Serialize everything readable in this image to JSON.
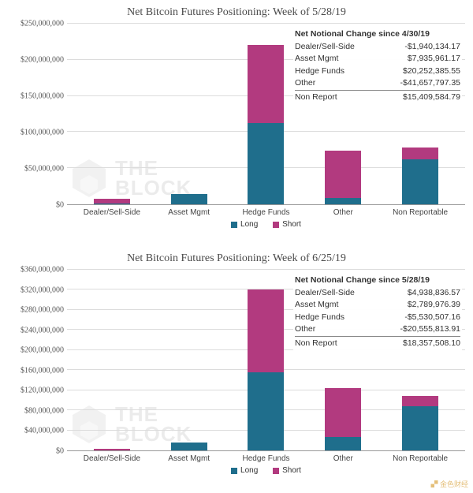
{
  "colors": {
    "long": "#1f6e8c",
    "short": "#b23a7f",
    "grid": "#dcdcdc",
    "axis": "#999999",
    "bg": "#ffffff"
  },
  "watermark": {
    "line1": "THE",
    "line2": "BLOCK"
  },
  "legend": {
    "long_label": "Long",
    "short_label": "Short"
  },
  "corner_mark": "▞ 金色财经",
  "charts": [
    {
      "title": "Net Bitcoin Futures Positioning: Week of 5/28/19",
      "y_max": 250000000,
      "y_ticks": [
        {
          "v": 0,
          "label": "$0"
        },
        {
          "v": 50000000,
          "label": "$50,000,000"
        },
        {
          "v": 100000000,
          "label": "$100,000,000"
        },
        {
          "v": 150000000,
          "label": "$150,000,000"
        },
        {
          "v": 200000000,
          "label": "$200,000,000"
        },
        {
          "v": 250000000,
          "label": "$250,000,000"
        }
      ],
      "categories": [
        "Dealer/Sell-Side",
        "Asset Mgmt",
        "Hedge Funds",
        "Other",
        "Non Reportable"
      ],
      "series": {
        "long": [
          1500000,
          14000000,
          112000000,
          9000000,
          62000000
        ],
        "short": [
          6000000,
          0,
          108000000,
          65000000,
          16000000
        ]
      },
      "info": {
        "title": "Net Notional Change since 4/30/19",
        "rows": [
          {
            "label": "Dealer/Sell-Side",
            "value": "-$1,940,134.17"
          },
          {
            "label": "Asset Mgmt",
            "value": "$7,935,961.17"
          },
          {
            "label": "Hedge Funds",
            "value": "$20,252,385.55"
          },
          {
            "label": "Other",
            "value": "-$41,657,797.35"
          },
          {
            "label": "Non Report",
            "value": "$15,409,584.79"
          }
        ]
      }
    },
    {
      "title": "Net Bitcoin Futures Positioning: Week of 6/25/19",
      "y_max": 360000000,
      "y_ticks": [
        {
          "v": 0,
          "label": "$0"
        },
        {
          "v": 40000000,
          "label": "$40,000,000"
        },
        {
          "v": 80000000,
          "label": "$80,000,000"
        },
        {
          "v": 120000000,
          "label": "$120,000,000"
        },
        {
          "v": 160000000,
          "label": "$160,000,000"
        },
        {
          "v": 200000000,
          "label": "$200,000,000"
        },
        {
          "v": 240000000,
          "label": "$240,000,000"
        },
        {
          "v": 280000000,
          "label": "$280,000,000"
        },
        {
          "v": 320000000,
          "label": "$320,000,000"
        },
        {
          "v": 360000000,
          "label": "$360,000,000"
        }
      ],
      "categories": [
        "Dealer/Sell-Side",
        "Asset Mgmt",
        "Hedge Funds",
        "Other",
        "Non Reportable"
      ],
      "series": {
        "long": [
          0,
          16000000,
          155000000,
          26000000,
          88000000
        ],
        "short": [
          2500000,
          0,
          165000000,
          98000000,
          20000000
        ]
      },
      "info": {
        "title": "Net Notional Change since 5/28/19",
        "rows": [
          {
            "label": "Dealer/Sell-Side",
            "value": "$4,938,836.57"
          },
          {
            "label": "Asset Mgmt",
            "value": "$2,789,976.39"
          },
          {
            "label": "Hedge Funds",
            "value": "-$5,530,507.16"
          },
          {
            "label": "Other",
            "value": "-$20,555,813.91"
          },
          {
            "label": "Non Report",
            "value": "$18,357,508.10"
          }
        ]
      }
    }
  ]
}
